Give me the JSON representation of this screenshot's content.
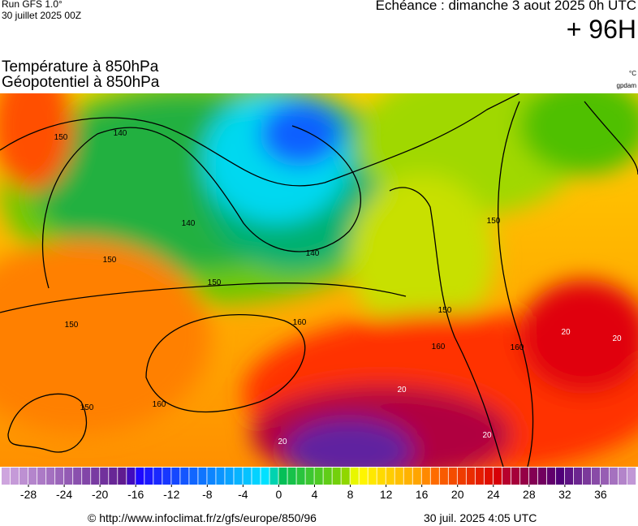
{
  "header": {
    "run": "Run GFS 1.0°",
    "run_date": "30 juillet 2025 00Z",
    "valid": "Echéance : dimanche 3 aout 2025 0h UTC",
    "lead": "+ 96H"
  },
  "title": {
    "line1": "Température à 850hPa",
    "line2": "Géopotentiel à 850hPa",
    "unit": "°C",
    "unit2": "gpdam"
  },
  "contour_labels": [
    "150",
    "140",
    "140",
    "150",
    "150",
    "140",
    "150",
    "160",
    "160",
    "150",
    "160",
    "150",
    "150",
    "160",
    "20",
    "20",
    "20",
    "20",
    "20"
  ],
  "colorbar": {
    "lim": [
      -31,
      40
    ],
    "ticks": [
      -28,
      -24,
      -20,
      -16,
      -12,
      -8,
      -4,
      0,
      4,
      8,
      12,
      16,
      20,
      24,
      28,
      32,
      36
    ]
  },
  "footer": {
    "source": "© http://www.infoclimat.fr/z/gfs/europe/850/96",
    "generated": "30 juil. 2025  4:05 UTC"
  }
}
